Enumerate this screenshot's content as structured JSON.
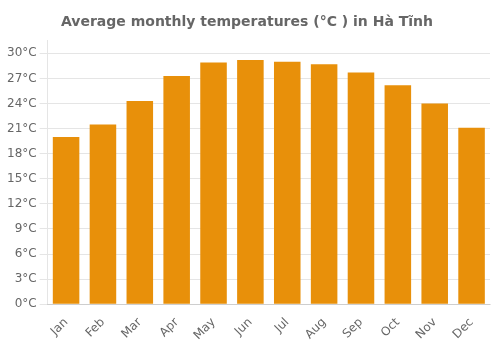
{
  "chart_data": {
    "type": "bar",
    "title": "Average monthly temperatures (°C ) in Hà Tĩnh",
    "categories": [
      "Jan",
      "Feb",
      "Mar",
      "Apr",
      "May",
      "Jun",
      "Jul",
      "Aug",
      "Sep",
      "Oct",
      "Nov",
      "Dec"
    ],
    "values": [
      20.0,
      21.5,
      24.3,
      27.3,
      28.9,
      29.2,
      29.0,
      28.7,
      27.7,
      26.2,
      24.0,
      21.1
    ],
    "color": "#E8900A",
    "ylim": [
      0,
      31.5
    ],
    "yticks": [
      {
        "value": 0,
        "label": "0°C"
      },
      {
        "value": 3,
        "label": "3°C"
      },
      {
        "value": 6,
        "label": "6°C"
      },
      {
        "value": 9,
        "label": "9°C"
      },
      {
        "value": 12,
        "label": "12°C"
      },
      {
        "value": 15,
        "label": "15°C"
      },
      {
        "value": 18,
        "label": "18°C"
      },
      {
        "value": 21,
        "label": "21°C"
      },
      {
        "value": 24,
        "label": "24°C"
      },
      {
        "value": 27,
        "label": "27°C"
      },
      {
        "value": 30,
        "label": "30°C"
      }
    ],
    "grid": true
  }
}
